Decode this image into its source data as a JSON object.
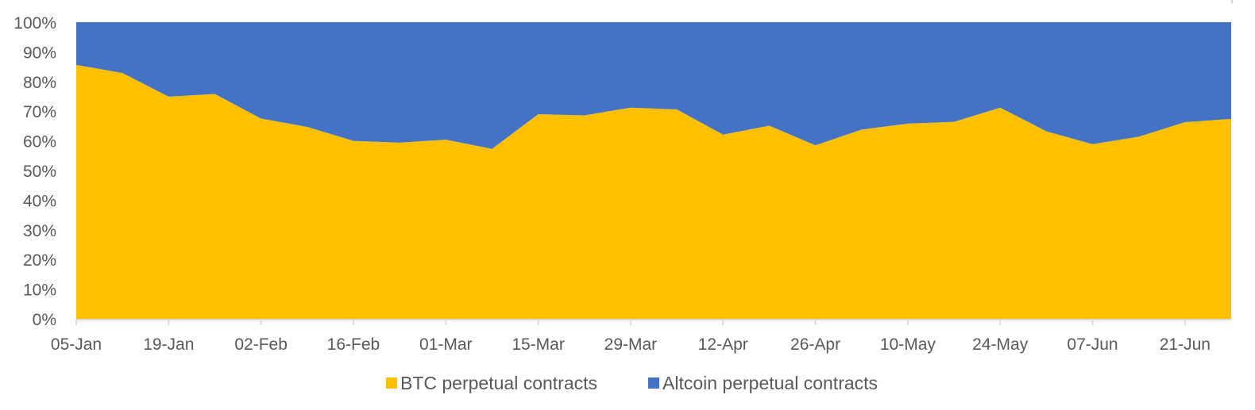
{
  "chart_data": {
    "type": "area",
    "stacked": true,
    "percent_stacked": true,
    "title": "",
    "xlabel": "",
    "ylabel": "",
    "ylim": [
      0,
      100
    ],
    "y_ticks": [
      "0%",
      "10%",
      "20%",
      "30%",
      "40%",
      "50%",
      "60%",
      "70%",
      "80%",
      "90%",
      "100%"
    ],
    "x_tick_labels": [
      "05-Jan",
      "19-Jan",
      "02-Feb",
      "16-Feb",
      "01-Mar",
      "15-Mar",
      "29-Mar",
      "12-Apr",
      "26-Apr",
      "10-May",
      "24-May",
      "07-Jun",
      "21-Jun"
    ],
    "x": [
      "05-Jan",
      "12-Jan",
      "19-Jan",
      "26-Jan",
      "02-Feb",
      "09-Feb",
      "16-Feb",
      "23-Feb",
      "01-Mar",
      "08-Mar",
      "15-Mar",
      "22-Mar",
      "29-Mar",
      "05-Apr",
      "12-Apr",
      "19-Apr",
      "26-Apr",
      "03-May",
      "10-May",
      "17-May",
      "24-May",
      "31-May",
      "07-Jun",
      "14-Jun",
      "21-Jun",
      "28-Jun"
    ],
    "series": [
      {
        "name": "BTC perpetual contracts",
        "color": "#FFC000",
        "values": [
          85.6,
          82.9,
          74.9,
          75.8,
          67.5,
          64.7,
          60.0,
          59.4,
          60.4,
          57.3,
          69.0,
          68.6,
          71.2,
          70.6,
          62.1,
          65.1,
          58.5,
          63.8,
          65.8,
          66.4,
          71.2,
          63.2,
          58.9,
          61.4,
          66.3,
          67.4
        ]
      },
      {
        "name": "Altcoin perpetual contracts",
        "color": "#4472C4",
        "values": [
          14.4,
          17.1,
          25.1,
          24.2,
          32.5,
          35.3,
          40.0,
          40.6,
          39.6,
          42.7,
          31.0,
          31.4,
          28.8,
          29.4,
          37.9,
          34.9,
          41.5,
          36.2,
          34.2,
          33.6,
          28.8,
          36.8,
          41.1,
          38.6,
          33.7,
          32.6
        ]
      }
    ],
    "grid": false,
    "legend_position": "bottom"
  },
  "legend": {
    "items": [
      {
        "label": "BTC perpetual contracts",
        "color": "#FFC000"
      },
      {
        "label": "Altcoin perpetual contracts",
        "color": "#4472C4"
      }
    ]
  }
}
